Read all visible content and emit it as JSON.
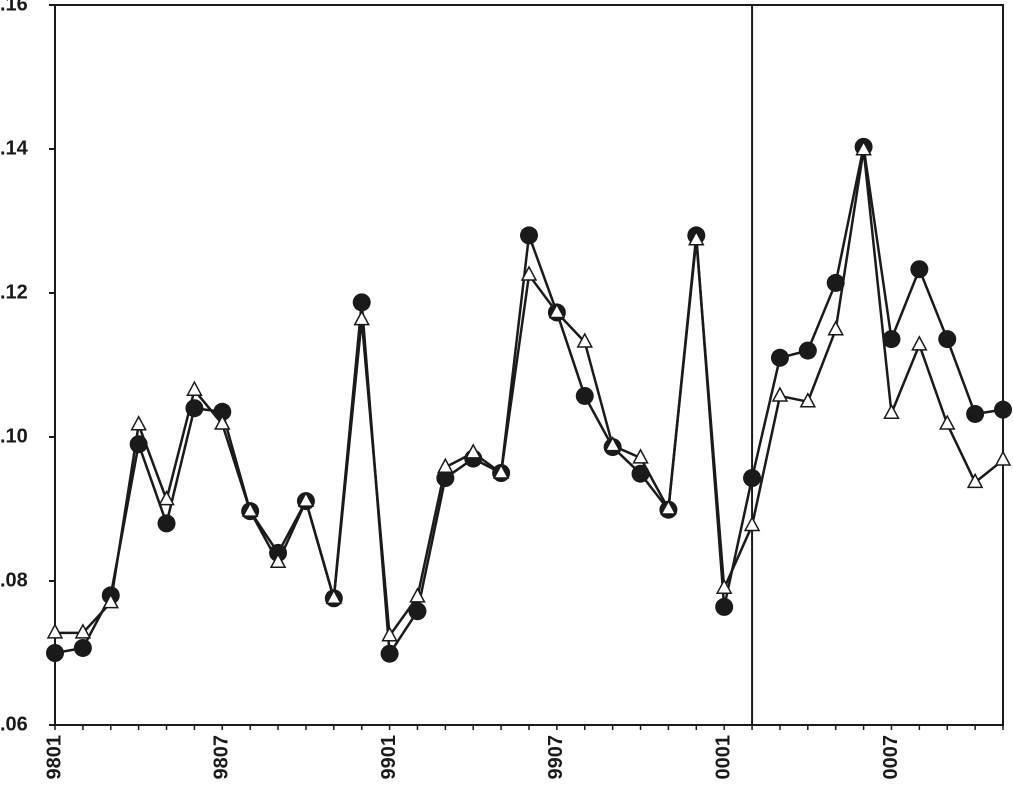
{
  "chart_data": {
    "type": "line",
    "categories": [
      "9801",
      null,
      null,
      null,
      null,
      null,
      "9807",
      null,
      null,
      null,
      null,
      null,
      "9901",
      null,
      null,
      null,
      null,
      null,
      "9907",
      null,
      null,
      null,
      null,
      null,
      "0001",
      null,
      null,
      null,
      null,
      null,
      "0007",
      null,
      null,
      null,
      null
    ],
    "series": [
      {
        "color": "#1a1a1a",
        "marker": "circle",
        "values": [
          0.07,
          0.0707,
          0.078,
          0.099,
          0.088,
          0.104,
          0.1035,
          0.0897,
          0.0839,
          0.0911,
          0.0776,
          0.1187,
          0.0699,
          0.0758,
          0.0943,
          0.097,
          0.095,
          0.128,
          0.1173,
          0.1057,
          0.0986,
          0.0949,
          0.0899,
          0.128,
          0.0764,
          0.0943,
          0.111,
          0.112,
          0.1214,
          0.1403,
          0.1136,
          0.1233,
          0.1136,
          0.1032,
          0.1038
        ]
      },
      {
        "color": "#1a1a1a",
        "marker": "triangle",
        "values": [
          0.0728,
          0.0728,
          0.077,
          0.1017,
          0.0913,
          0.1065,
          0.1018,
          0.0897,
          0.0826,
          0.0911,
          0.0776,
          0.1163,
          0.0724,
          0.0778,
          0.0958,
          0.0978,
          0.095,
          0.1225,
          0.1173,
          0.1132,
          0.0988,
          0.0971,
          0.09,
          0.1274,
          0.079,
          0.0877,
          0.1057,
          0.1049,
          0.1149,
          0.1399,
          0.1033,
          0.1128,
          0.1018,
          0.0937,
          0.0968
        ]
      }
    ],
    "ylim": [
      0.06,
      0.16
    ],
    "yticks": [
      {
        "value": 0.06,
        "label": ".06"
      },
      {
        "value": 0.08,
        "label": ".08"
      },
      {
        "value": 0.1,
        "label": ".10"
      },
      {
        "value": 0.12,
        "label": ".12"
      },
      {
        "value": 0.14,
        "label": ".14"
      },
      {
        "value": 0.16,
        "label": ".16"
      }
    ],
    "reference_line": {
      "category_index": 25
    },
    "grid": false
  }
}
